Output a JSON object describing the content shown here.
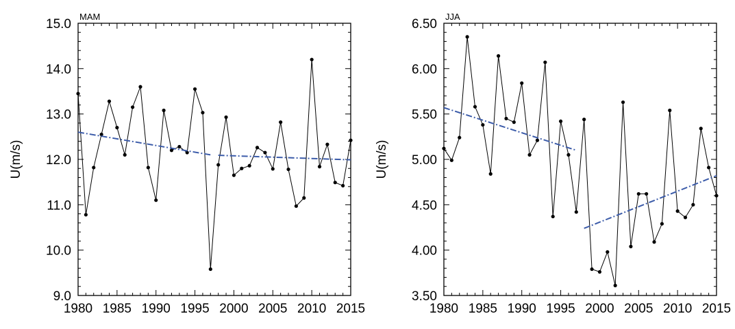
{
  "chart_data": [
    {
      "type": "line",
      "title": "MAM",
      "xlabel": "",
      "ylabel": "U(m/s)",
      "xlim": [
        1980,
        2015
      ],
      "ylim": [
        9.0,
        15.0
      ],
      "x_ticks": [
        "1980",
        "1985",
        "1990",
        "1995",
        "2000",
        "2005",
        "2010",
        "2015"
      ],
      "y_ticks": [
        "9.0",
        "10.0",
        "11.0",
        "12.0",
        "13.0",
        "14.0",
        "15.0"
      ],
      "grid": false,
      "series": [
        {
          "style": "solid-with-markers",
          "color": "#000000",
          "x": [
            1980,
            1981,
            1982,
            1983,
            1984,
            1985,
            1986,
            1987,
            1988,
            1989,
            1990,
            1991,
            1992,
            1993,
            1994,
            1995,
            1996,
            1997,
            1998,
            1999,
            2000,
            2001,
            2002,
            2003,
            2004,
            2005,
            2006,
            2007,
            2008,
            2009,
            2010,
            2011,
            2012,
            2013,
            2014,
            2015
          ],
          "y": [
            13.45,
            10.78,
            11.82,
            12.55,
            13.28,
            12.7,
            12.1,
            13.15,
            13.6,
            11.82,
            11.1,
            13.08,
            12.2,
            12.28,
            12.15,
            13.55,
            13.03,
            9.58,
            11.88,
            12.93,
            11.65,
            11.8,
            11.86,
            12.26,
            12.15,
            11.79,
            12.82,
            11.78,
            10.97,
            11.15,
            14.2,
            11.84,
            12.33,
            11.49,
            11.42,
            12.42
          ]
        },
        {
          "style": "dash-dot",
          "color": "#3b5ba9",
          "x": [
            1980,
            1997
          ],
          "y": [
            12.6,
            12.1
          ]
        },
        {
          "style": "dash-dot",
          "color": "#3b5ba9",
          "x": [
            1998,
            2015
          ],
          "y": [
            12.09,
            11.99
          ]
        }
      ]
    },
    {
      "type": "line",
      "title": "JJA",
      "xlabel": "",
      "ylabel": "U(m/s)",
      "xlim": [
        1980,
        2015
      ],
      "ylim": [
        3.5,
        6.5
      ],
      "x_ticks": [
        "1980",
        "1985",
        "1990",
        "1995",
        "2000",
        "2005",
        "2010",
        "2015"
      ],
      "y_ticks": [
        "3.50",
        "4.00",
        "4.50",
        "5.00",
        "5.50",
        "6.00",
        "6.50"
      ],
      "grid": false,
      "series": [
        {
          "style": "solid-with-markers",
          "color": "#000000",
          "x": [
            1980,
            1981,
            1982,
            1983,
            1984,
            1985,
            1986,
            1987,
            1988,
            1989,
            1990,
            1991,
            1992,
            1993,
            1994,
            1995,
            1996,
            1997,
            1998,
            1999,
            2000,
            2001,
            2002,
            2003,
            2004,
            2005,
            2006,
            2007,
            2008,
            2009,
            2010,
            2011,
            2012,
            2013,
            2014,
            2015
          ],
          "y": [
            5.12,
            4.99,
            5.24,
            6.35,
            5.58,
            5.38,
            4.84,
            6.14,
            5.45,
            5.41,
            5.84,
            5.05,
            5.21,
            6.07,
            4.37,
            5.42,
            5.05,
            4.42,
            5.44,
            3.79,
            3.76,
            3.98,
            3.61,
            5.63,
            4.04,
            4.62,
            4.62,
            4.09,
            4.29,
            5.54,
            4.43,
            4.36,
            4.5,
            5.34,
            4.91,
            4.6
          ]
        },
        {
          "style": "dash-dot",
          "color": "#3b5ba9",
          "x": [
            1980,
            1997
          ],
          "y": [
            5.57,
            5.1
          ]
        },
        {
          "style": "dash-dot",
          "color": "#3b5ba9",
          "x": [
            1998,
            2015
          ],
          "y": [
            4.24,
            4.82
          ]
        }
      ]
    }
  ]
}
